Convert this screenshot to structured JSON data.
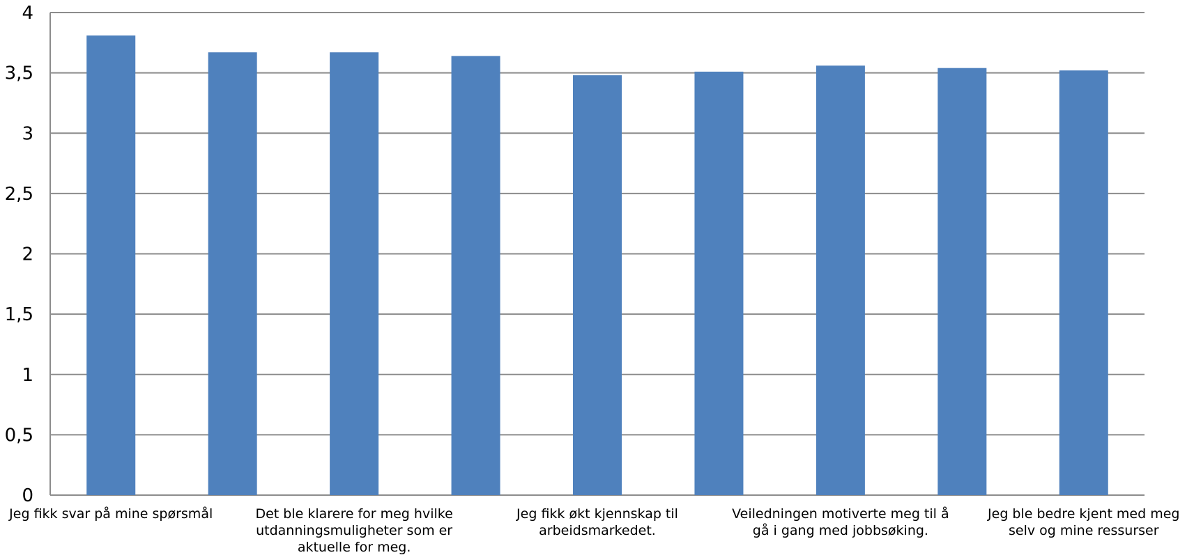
{
  "chart_data": {
    "type": "bar",
    "title": "",
    "xlabel": "",
    "ylabel": "",
    "ylim": [
      0,
      4
    ],
    "yticks": [
      "0",
      "0,5",
      "1",
      "1,5",
      "2",
      "2,5",
      "3",
      "3,5",
      "4"
    ],
    "grid": true,
    "legend": "none",
    "bar_color": "#4f81bd",
    "grid_color": "#8c8c8c",
    "categories": [
      "Jeg fikk svar på mine spørsmål",
      "",
      "Det ble klarere for meg hvilke utdanningsmuligheter som er aktuelle for meg.",
      "",
      "Jeg fikk økt kjennskap til arbeidsmarkedet.",
      "",
      "Veiledningen motiverte meg til å gå i gang med jobbsøking.",
      "",
      "Jeg ble bedre kjent med meg selv og mine ressurser"
    ],
    "category_lines": [
      [
        "Jeg fikk svar på mine spørsmål"
      ],
      [],
      [
        "Det ble klarere for meg hvilke",
        "utdanningsmuligheter som er",
        "aktuelle for meg."
      ],
      [],
      [
        "Jeg fikk økt kjennskap til",
        "arbeidsmarkedet."
      ],
      [],
      [
        "Veiledningen motiverte meg til å",
        "gå i gang med jobbsøking."
      ],
      [],
      [
        "Jeg ble bedre kjent med meg",
        "selv og mine ressurser"
      ]
    ],
    "values": [
      3.81,
      3.67,
      3.67,
      3.64,
      3.48,
      3.51,
      3.56,
      3.54,
      3.52
    ]
  }
}
